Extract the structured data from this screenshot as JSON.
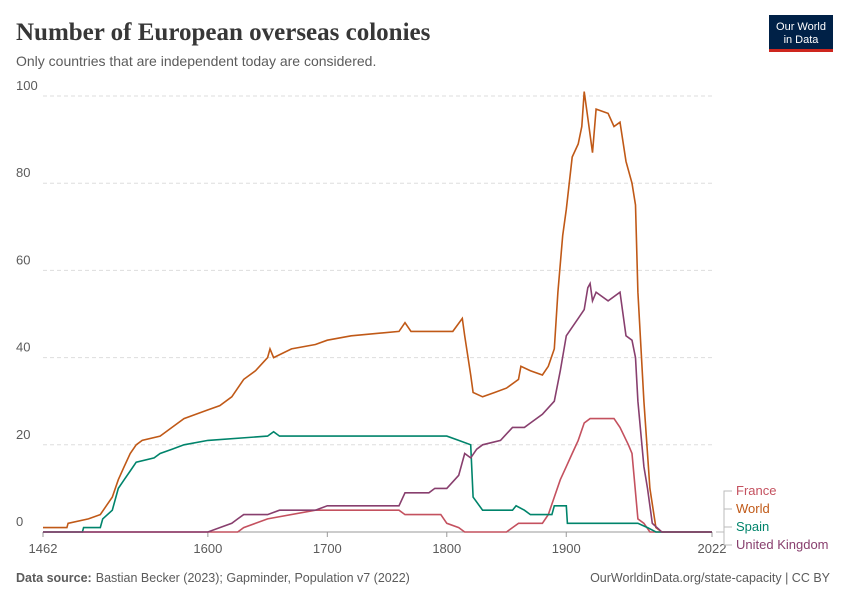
{
  "logo": [
    "Our World",
    "in Data"
  ],
  "footer": {
    "source_label": "Data source:",
    "source": "Bastian Becker (2023); Gapminder, Population v7 (2022)",
    "url": "OurWorldinData.org/state-capacity | CC BY"
  },
  "chart_data": {
    "type": "line",
    "title": "Number of European overseas colonies",
    "subtitle": "Only countries that are independent today are considered.",
    "xlim": [
      1462,
      2022
    ],
    "xticks": [
      1462,
      1600,
      1700,
      1800,
      1900,
      2022
    ],
    "ylim": [
      0,
      100
    ],
    "yticks": [
      0,
      20,
      40,
      60,
      80,
      100
    ],
    "grid": true,
    "series": [
      {
        "name": "France",
        "color": "#c4515f",
        "x": [
          1462,
          1600,
          1625,
          1630,
          1640,
          1650,
          1690,
          1700,
          1760,
          1765,
          1795,
          1800,
          1810,
          1815,
          1850,
          1855,
          1860,
          1880,
          1885,
          1890,
          1895,
          1900,
          1905,
          1910,
          1915,
          1920,
          1940,
          1945,
          1952,
          1955,
          1960,
          1965,
          1970,
          2022
        ],
        "values": [
          0,
          0,
          0,
          1,
          2,
          3,
          5,
          5,
          5,
          4,
          4,
          2,
          1,
          0,
          0,
          1,
          2,
          2,
          4,
          8,
          12,
          15,
          18,
          21,
          25,
          26,
          26,
          24,
          20,
          18,
          3,
          2,
          0,
          0
        ]
      },
      {
        "name": "World",
        "color": "#c05917",
        "x": [
          1462,
          1482,
          1483,
          1500,
          1510,
          1515,
          1520,
          1525,
          1530,
          1535,
          1540,
          1545,
          1560,
          1570,
          1580,
          1590,
          1600,
          1610,
          1620,
          1630,
          1640,
          1650,
          1652,
          1655,
          1670,
          1690,
          1700,
          1720,
          1760,
          1765,
          1770,
          1790,
          1805,
          1813,
          1815,
          1820,
          1822,
          1830,
          1840,
          1850,
          1860,
          1862,
          1870,
          1880,
          1885,
          1890,
          1893,
          1897,
          1900,
          1905,
          1910,
          1913,
          1915,
          1918,
          1922,
          1925,
          1935,
          1940,
          1945,
          1950,
          1955,
          1958,
          1960,
          1965,
          1970,
          1975,
          1980,
          2022
        ],
        "values": [
          1,
          1,
          2,
          3,
          4,
          6,
          8,
          12,
          15,
          18,
          20,
          21,
          22,
          24,
          26,
          27,
          28,
          29,
          31,
          35,
          37,
          40,
          42,
          40,
          42,
          43,
          44,
          45,
          46,
          48,
          46,
          46,
          46,
          49,
          45,
          36,
          32,
          31,
          32,
          33,
          35,
          38,
          37,
          36,
          38,
          42,
          55,
          68,
          74,
          86,
          89,
          93,
          101,
          95,
          87,
          97,
          96,
          93,
          94,
          85,
          80,
          75,
          55,
          30,
          10,
          1,
          0,
          0
        ]
      },
      {
        "name": "Spain",
        "color": "#00846b",
        "x": [
          1462,
          1495,
          1496,
          1510,
          1512,
          1520,
          1525,
          1530,
          1535,
          1540,
          1555,
          1560,
          1570,
          1580,
          1600,
          1650,
          1655,
          1660,
          1800,
          1810,
          1820,
          1822,
          1830,
          1855,
          1858,
          1865,
          1870,
          1888,
          1890,
          1900,
          1901,
          1960,
          1968,
          1975,
          2022
        ],
        "values": [
          0,
          0,
          1,
          1,
          3,
          5,
          10,
          12,
          14,
          16,
          17,
          18,
          19,
          20,
          21,
          22,
          23,
          22,
          22,
          21,
          20,
          8,
          5,
          5,
          6,
          5,
          4,
          4,
          6,
          6,
          2,
          2,
          1,
          0,
          0
        ]
      },
      {
        "name": "United Kingdom",
        "color": "#883f6e",
        "x": [
          1462,
          1600,
          1610,
          1620,
          1625,
          1630,
          1650,
          1660,
          1690,
          1700,
          1760,
          1765,
          1785,
          1790,
          1800,
          1810,
          1815,
          1820,
          1825,
          1830,
          1845,
          1855,
          1865,
          1870,
          1880,
          1890,
          1895,
          1900,
          1910,
          1915,
          1918,
          1920,
          1922,
          1925,
          1935,
          1945,
          1950,
          1955,
          1958,
          1960,
          1965,
          1968,
          1972,
          1980,
          2022
        ],
        "values": [
          0,
          0,
          1,
          2,
          3,
          4,
          4,
          5,
          5,
          6,
          6,
          9,
          9,
          10,
          10,
          13,
          18,
          17,
          19,
          20,
          21,
          24,
          24,
          25,
          27,
          30,
          37,
          45,
          49,
          51,
          56,
          57,
          53,
          55,
          53,
          55,
          45,
          44,
          40,
          30,
          15,
          10,
          2,
          0,
          0
        ]
      }
    ]
  }
}
